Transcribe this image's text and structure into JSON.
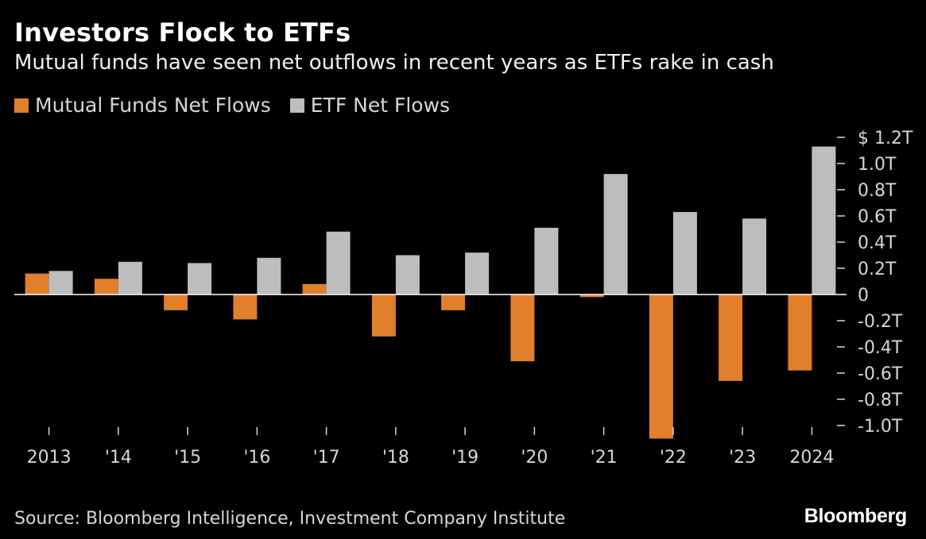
{
  "header": {
    "title": "Investors Flock to ETFs",
    "subtitle": "Mutual funds have seen net outflows in recent years as ETFs rake in cash"
  },
  "footer": {
    "source": "Source: Bloomberg Intelligence, Investment Company Institute",
    "brand": "Bloomberg"
  },
  "colors": {
    "background": "#000000",
    "mutual_funds": "#e07f2c",
    "etf": "#bdbdbd",
    "zero_line": "#ffffff",
    "text": "#d6d6d6"
  },
  "chart_data": {
    "type": "bar",
    "title": "Investors Flock to ETFs",
    "subtitle": "Mutual funds have seen net outflows in recent years as ETFs rake in cash",
    "categories": [
      "2013",
      "'14",
      "'15",
      "'16",
      "'17",
      "'18",
      "'19",
      "'20",
      "'21",
      "'22",
      "'23",
      "2024"
    ],
    "series": [
      {
        "name": "Mutual Funds Net Flows",
        "color": "#e07f2c",
        "values": [
          0.16,
          0.12,
          -0.12,
          -0.19,
          0.08,
          -0.32,
          -0.12,
          -0.51,
          -0.02,
          -1.1,
          -0.66,
          -0.58
        ]
      },
      {
        "name": "ETF Net Flows",
        "color": "#bdbdbd",
        "values": [
          0.18,
          0.25,
          0.24,
          0.28,
          0.48,
          0.3,
          0.32,
          0.51,
          0.92,
          0.63,
          0.58,
          1.13
        ]
      }
    ],
    "y_ticks": [
      {
        "value": 1.2,
        "label": "$ 1.2T"
      },
      {
        "value": 1.0,
        "label": "1.0T"
      },
      {
        "value": 0.8,
        "label": "0.8T"
      },
      {
        "value": 0.6,
        "label": "0.6T"
      },
      {
        "value": 0.4,
        "label": "0.4T"
      },
      {
        "value": 0.2,
        "label": "0.2T"
      },
      {
        "value": 0,
        "label": "0"
      },
      {
        "value": -0.2,
        "label": "-0.2T"
      },
      {
        "value": -0.4,
        "label": "-0.4T"
      },
      {
        "value": -0.6,
        "label": "-0.6T"
      },
      {
        "value": -0.8,
        "label": "-0.8T"
      },
      {
        "value": -1.0,
        "label": "-1.0T"
      }
    ],
    "ylim": [
      -1.1,
      1.2
    ],
    "y_axis_position": "right",
    "legend_position": "top-left",
    "grid": false
  }
}
